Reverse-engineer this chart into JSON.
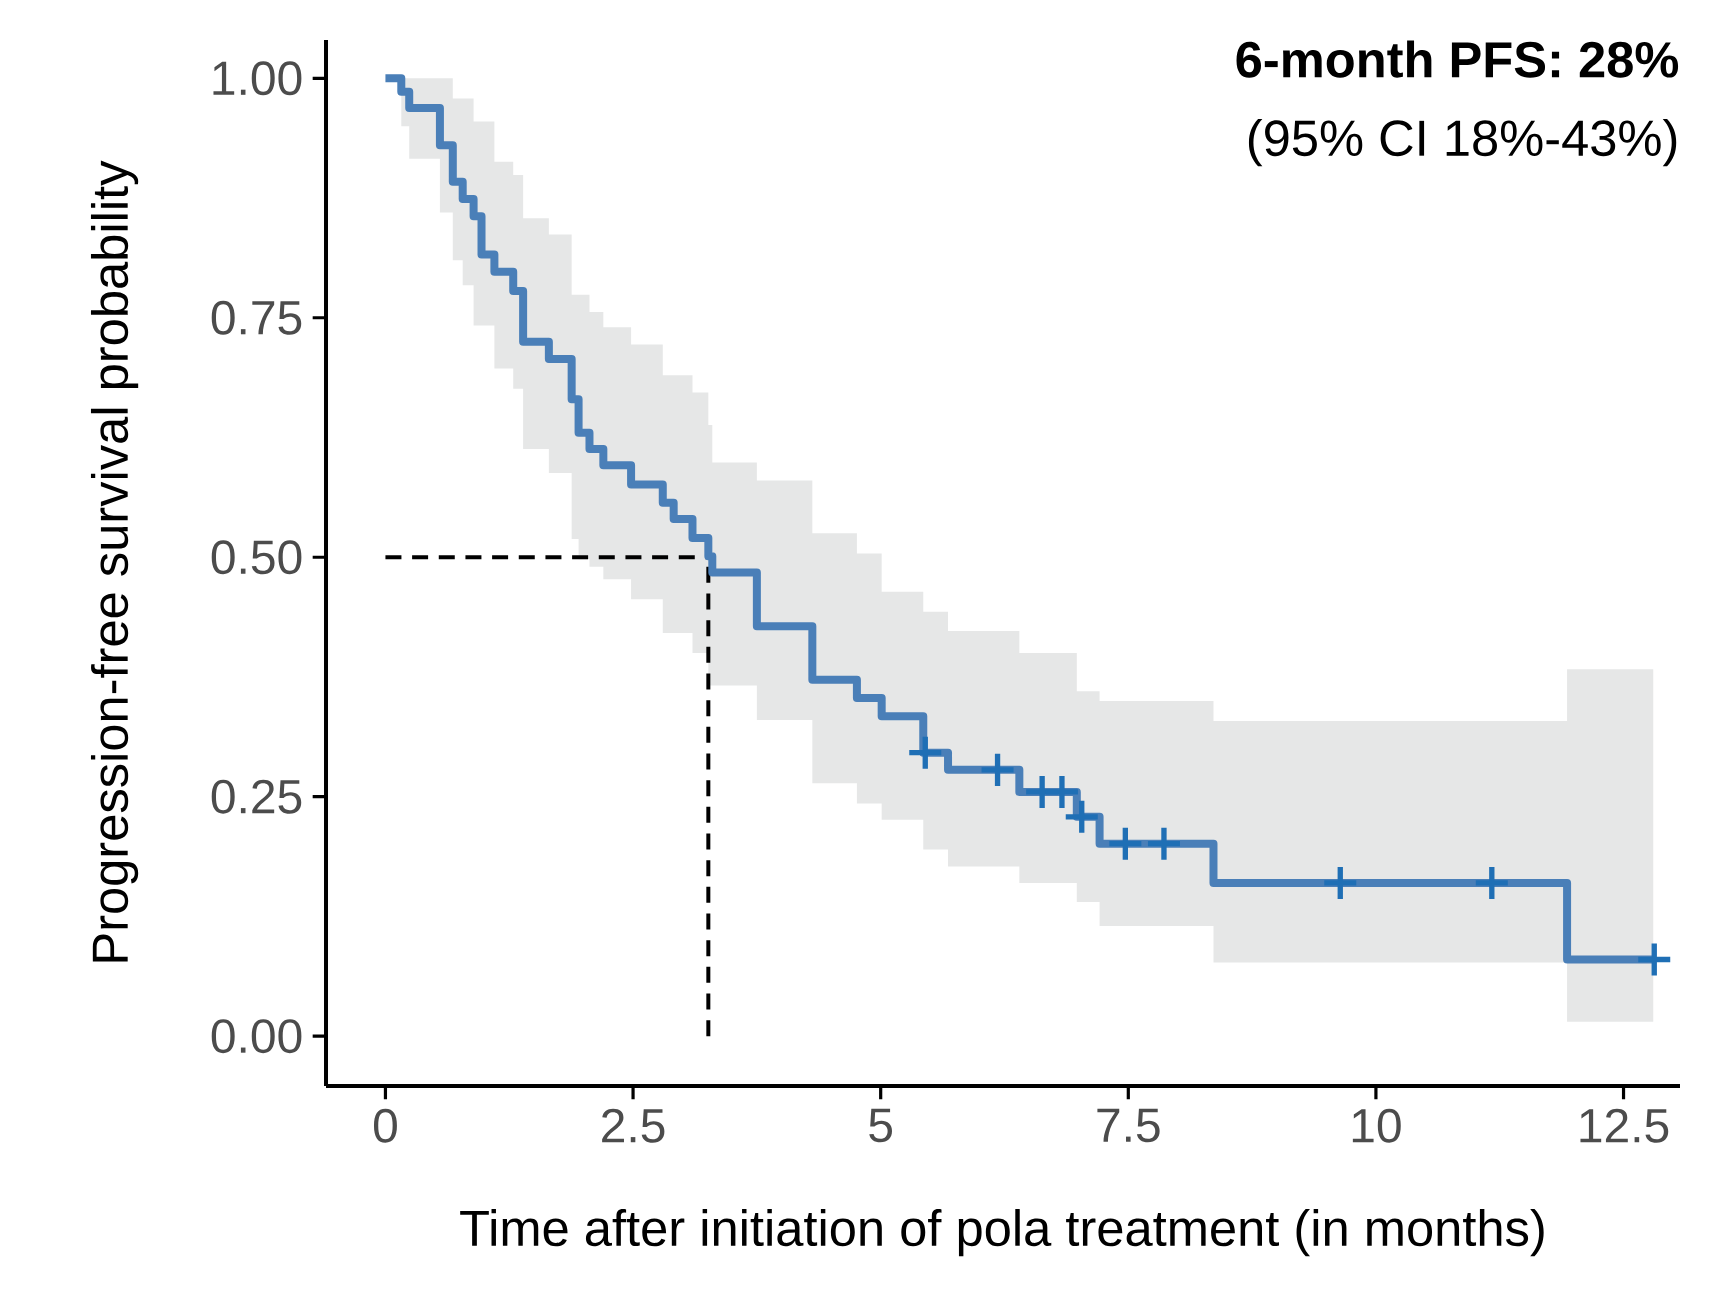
{
  "chart_data": {
    "type": "step",
    "xlabel": "Time after initiation of pola treatment (in months)",
    "ylabel": "Progression-free survival probability",
    "annotations": [
      "6-month PFS: 28%",
      "(95% CI 18%-43%)"
    ],
    "xlim": [
      -0.6,
      13.07
    ],
    "ylim": [
      -0.052,
      1.04
    ],
    "xticks": [
      0,
      2.5,
      5,
      7.5,
      10,
      12.5
    ],
    "yticks": [
      {
        "value": 0,
        "label": "0.00"
      },
      {
        "value": 0.25,
        "label": "0.25"
      },
      {
        "value": 0.5,
        "label": "0.50"
      },
      {
        "value": 0.75,
        "label": "0.75"
      },
      {
        "value": 1,
        "label": "1.00"
      }
    ],
    "ref_lines": [
      {
        "axis": "y",
        "value": 0.5,
        "line_style": "dashed",
        "color": "#000000"
      },
      {
        "axis": "x",
        "value": 3.26,
        "line_style": "dashed",
        "color": "#000000"
      }
    ],
    "series": [
      {
        "color": "#4a7fb8",
        "x": [
          0,
          0.16,
          0.24,
          0.55,
          0.68,
          0.78,
          0.89,
          0.97,
          1.1,
          1.29,
          1.39,
          1.65,
          1.88,
          1.95,
          2.06,
          2.2,
          2.48,
          2.8,
          2.91,
          3.1,
          3.26,
          3.3,
          3.75,
          4.31,
          4.76,
          5.01,
          5.43,
          5.68,
          6.4,
          6.98,
          7.21,
          8.36,
          11.93,
          12.8
        ],
        "values": [
          1.0,
          0.986,
          0.969,
          0.93,
          0.892,
          0.874,
          0.856,
          0.816,
          0.798,
          0.778,
          0.725,
          0.707,
          0.665,
          0.63,
          0.613,
          0.596,
          0.576,
          0.557,
          0.54,
          0.52,
          0.501,
          0.484,
          0.428,
          0.372,
          0.353,
          0.334,
          0.296,
          0.278,
          0.255,
          0.229,
          0.201,
          0.16,
          0.08,
          0.08
        ],
        "lower": [
          1.0,
          0.95,
          0.916,
          0.86,
          0.81,
          0.784,
          0.742,
          0.742,
          0.697,
          0.676,
          0.613,
          0.588,
          0.519,
          0.498,
          0.49,
          0.477,
          0.456,
          0.421,
          0.421,
          0.4,
          0.366,
          0.366,
          0.33,
          0.264,
          0.243,
          0.226,
          0.195,
          0.177,
          0.16,
          0.14,
          0.115,
          0.077,
          0.015,
          0.015
        ],
        "upper": [
          1.0,
          1.0,
          1.0,
          1.0,
          0.979,
          0.979,
          0.955,
          0.955,
          0.913,
          0.899,
          0.854,
          0.837,
          0.774,
          0.774,
          0.756,
          0.74,
          0.722,
          0.69,
          0.69,
          0.672,
          0.638,
          0.599,
          0.58,
          0.525,
          0.504,
          0.464,
          0.443,
          0.423,
          0.4,
          0.36,
          0.35,
          0.329,
          0.383,
          0.383
        ]
      },
      {
        "type": "scatter",
        "marker": "cross",
        "color": "#1f6fb5",
        "x": [
          5.45,
          6.18,
          6.63,
          6.83,
          7.03,
          7.47,
          7.86,
          9.64,
          11.17,
          12.81
        ],
        "values": [
          0.296,
          0.278,
          0.255,
          0.255,
          0.229,
          0.201,
          0.201,
          0.16,
          0.16,
          0.08
        ]
      }
    ]
  }
}
